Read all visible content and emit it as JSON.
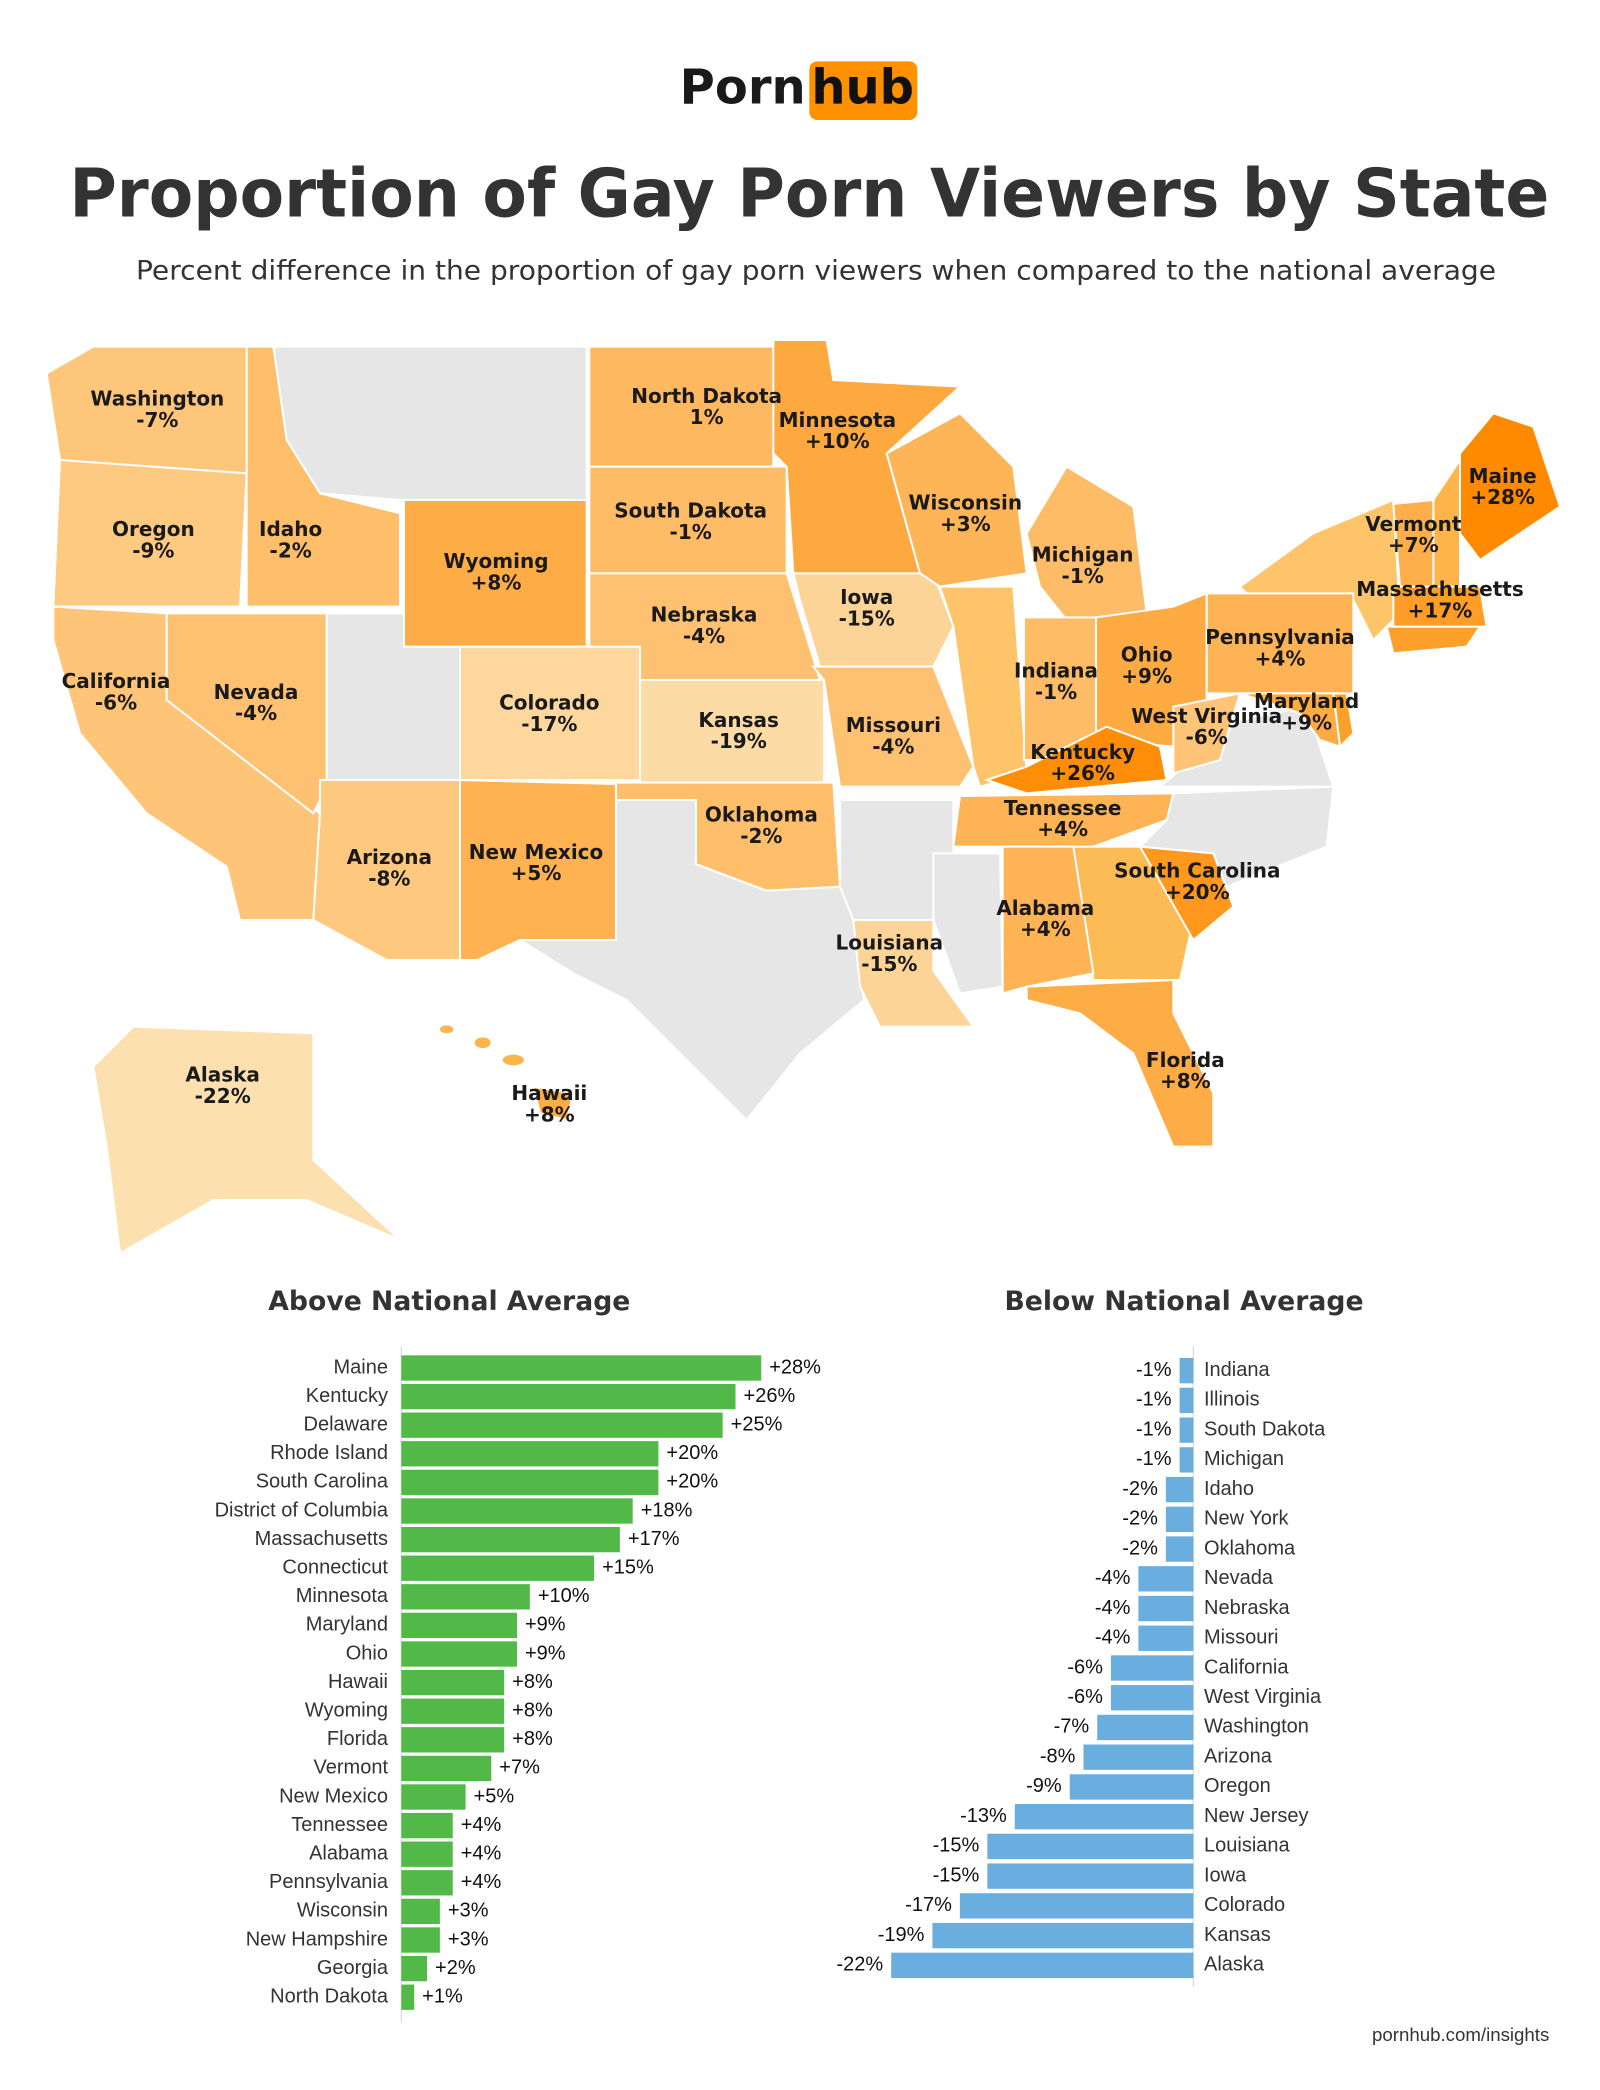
{
  "logo": {
    "left": "Porn",
    "right": "hub"
  },
  "title": "Proportion of Gay Porn Viewers by State",
  "subtitle": "Percent difference in the proportion of gay porn viewers when compared to the national average",
  "footer": "pornhub.com/insights",
  "chart_data": [
    {
      "type": "map",
      "regions": [
        "Washington",
        "Oregon",
        "California",
        "Idaho",
        "Nevada",
        "Arizona",
        "Wyoming",
        "Colorado",
        "New Mexico",
        "North Dakota",
        "South Dakota",
        "Nebraska",
        "Kansas",
        "Oklahoma",
        "Minnesota",
        "Iowa",
        "Missouri",
        "Louisiana",
        "Wisconsin",
        "Michigan",
        "Indiana",
        "Ohio",
        "Kentucky",
        "Tennessee",
        "Alabama",
        "Florida",
        "South Carolina",
        "West Virginia",
        "Pennsylvania",
        "Maryland",
        "Vermont",
        "Maine",
        "Massachusetts",
        "Alaska",
        "Hawaii"
      ],
      "values": [
        -7,
        -9,
        -6,
        -2,
        -4,
        -8,
        8,
        -17,
        5,
        1,
        -1,
        -4,
        -19,
        -2,
        10,
        -15,
        -4,
        -15,
        3,
        -1,
        -1,
        9,
        26,
        4,
        4,
        8,
        20,
        -6,
        4,
        9,
        7,
        28,
        17,
        -22,
        8
      ],
      "value_labels": [
        "-7%",
        "-9%",
        "-6%",
        "-2%",
        "-4%",
        "-8%",
        "+8%",
        "-17%",
        "+5%",
        "1%",
        "-1%",
        "-4%",
        "-19%",
        "-2%",
        "+10%",
        "-15%",
        "-4%",
        "-15%",
        "+3%",
        "-1%",
        "-1%",
        "+9%",
        "+26%",
        "+4%",
        "+4%",
        "+8%",
        "+20%",
        "-6%",
        "+4%",
        "+9%",
        "+7%",
        "+28%",
        "+17%",
        "-22%",
        "+8%"
      ],
      "color_low": "#fde0b0",
      "color_high": "#ff8a00"
    },
    {
      "type": "hbar",
      "title": "Above National Average",
      "color": "#52b848",
      "categories": [
        "Maine",
        "Kentucky",
        "Delaware",
        "Rhode Island",
        "South Carolina",
        "District of Columbia",
        "Massachusetts",
        "Connecticut",
        "Minnesota",
        "Maryland",
        "Ohio",
        "Hawaii",
        "Wyoming",
        "Florida",
        "Vermont",
        "New Mexico",
        "Tennessee",
        "Alabama",
        "Pennsylvania",
        "Wisconsin",
        "New Hampshire",
        "Georgia",
        "North Dakota"
      ],
      "values": [
        28,
        26,
        25,
        20,
        20,
        18,
        17,
        15,
        10,
        9,
        9,
        8,
        8,
        8,
        7,
        5,
        4,
        4,
        4,
        3,
        3,
        2,
        1
      ],
      "value_labels": [
        "+28%",
        "+26%",
        "+25%",
        "+20%",
        "+20%",
        "+18%",
        "+17%",
        "+15%",
        "+10%",
        "+9%",
        "+9%",
        "+8%",
        "+8%",
        "+8%",
        "+7%",
        "+5%",
        "+4%",
        "+4%",
        "+4%",
        "+3%",
        "+3%",
        "+2%",
        "+1%"
      ]
    },
    {
      "type": "hbar",
      "title": "Below National Average",
      "color": "#6aaee0",
      "categories": [
        "Indiana",
        "Illinois",
        "South Dakota",
        "Michigan",
        "Idaho",
        "New York",
        "Oklahoma",
        "Nevada",
        "Nebraska",
        "Missouri",
        "California",
        "West Virginia",
        "Washington",
        "Arizona",
        "Oregon",
        "New Jersey",
        "Louisiana",
        "Iowa",
        "Colorado",
        "Kansas",
        "Alaska"
      ],
      "values": [
        -1,
        -1,
        -1,
        -1,
        -2,
        -2,
        -2,
        -4,
        -4,
        -4,
        -6,
        -6,
        -7,
        -8,
        -9,
        -13,
        -15,
        -15,
        -17,
        -19,
        -22
      ],
      "value_labels": [
        "-1%",
        "-1%",
        "-1%",
        "-1%",
        "-2%",
        "-2%",
        "-2%",
        "-4%",
        "-4%",
        "-4%",
        "-6%",
        "-6%",
        "-7%",
        "-8%",
        "-9%",
        "-13%",
        "-15%",
        "-15%",
        "-17%",
        "-19%",
        "-22%"
      ]
    }
  ]
}
